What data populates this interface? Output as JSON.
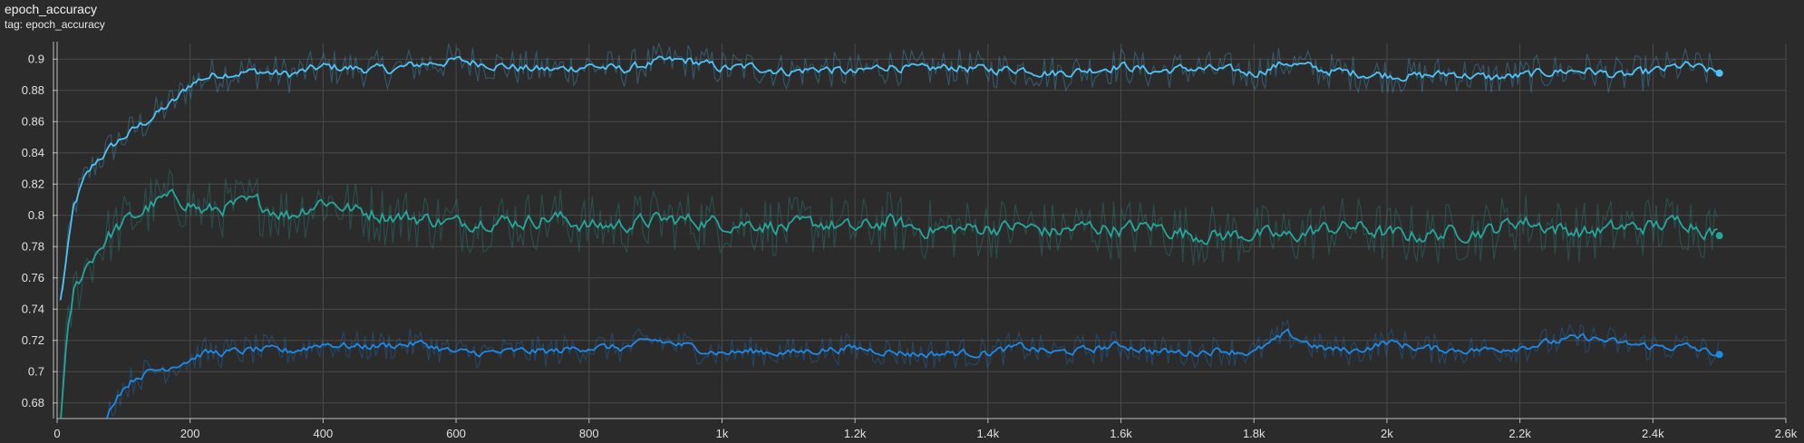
{
  "card": {
    "title": "epoch_accuracy",
    "tag_label": "tag: epoch_accuracy"
  },
  "chart_data": {
    "type": "line",
    "title": "epoch_accuracy",
    "subtitle": "tag: epoch_accuracy",
    "xlabel": "",
    "ylabel": "",
    "xlim": [
      0,
      2600
    ],
    "ylim": [
      0.67,
      0.91
    ],
    "x_ticks": [
      0,
      200,
      400,
      600,
      800,
      1000,
      1200,
      1400,
      1600,
      1800,
      2000,
      2200,
      2400,
      2600
    ],
    "x_tick_labels": [
      "0",
      "200",
      "400",
      "600",
      "800",
      "1k",
      "1.2k",
      "1.4k",
      "1.6k",
      "1.8k",
      "2k",
      "2.2k",
      "2.4k",
      "2.6k"
    ],
    "y_ticks": [
      0.68,
      0.7,
      0.72,
      0.74,
      0.76,
      0.78,
      0.8,
      0.82,
      0.84,
      0.86,
      0.88,
      0.9
    ],
    "y_tick_labels": [
      "0.68",
      "0.7",
      "0.72",
      "0.74",
      "0.76",
      "0.78",
      "0.8",
      "0.82",
      "0.84",
      "0.86",
      "0.88",
      "0.9"
    ],
    "grid": true,
    "legend": "none",
    "series": [
      {
        "color": "#4fc3f7",
        "smoothed": {
          "x": [
            5,
            15,
            25,
            40,
            60,
            80,
            100,
            120,
            140,
            160,
            180,
            200,
            220,
            250,
            300,
            350,
            400,
            450,
            500,
            550,
            600,
            650,
            700,
            750,
            800,
            850,
            900,
            950,
            1000,
            1050,
            1100,
            1150,
            1200,
            1250,
            1300,
            1350,
            1400,
            1450,
            1500,
            1550,
            1600,
            1650,
            1700,
            1750,
            1800,
            1850,
            1900,
            1950,
            2000,
            2050,
            2100,
            2150,
            2200,
            2250,
            2300,
            2350,
            2400,
            2450,
            2500
          ],
          "y": [
            0.745,
            0.775,
            0.805,
            0.822,
            0.835,
            0.843,
            0.85,
            0.856,
            0.862,
            0.868,
            0.874,
            0.884,
            0.888,
            0.891,
            0.892,
            0.89,
            0.895,
            0.894,
            0.893,
            0.897,
            0.899,
            0.897,
            0.894,
            0.893,
            0.896,
            0.893,
            0.898,
            0.899,
            0.894,
            0.895,
            0.892,
            0.894,
            0.891,
            0.896,
            0.893,
            0.895,
            0.893,
            0.894,
            0.891,
            0.893,
            0.896,
            0.892,
            0.894,
            0.893,
            0.891,
            0.898,
            0.893,
            0.891,
            0.89,
            0.889,
            0.891,
            0.888,
            0.889,
            0.892,
            0.893,
            0.889,
            0.892,
            0.896,
            0.891
          ]
        },
        "raw_noise": 0.012
      },
      {
        "color": "#26a69a",
        "smoothed": {
          "x": [
            5,
            15,
            25,
            40,
            60,
            80,
            100,
            120,
            140,
            160,
            180,
            200,
            220,
            250,
            300,
            350,
            400,
            450,
            500,
            550,
            600,
            650,
            700,
            750,
            800,
            850,
            900,
            950,
            1000,
            1050,
            1100,
            1150,
            1200,
            1250,
            1300,
            1350,
            1400,
            1450,
            1500,
            1550,
            1600,
            1650,
            1700,
            1750,
            1800,
            1850,
            1900,
            1950,
            2000,
            2050,
            2100,
            2150,
            2200,
            2250,
            2300,
            2350,
            2400,
            2450,
            2500
          ],
          "y": [
            0.67,
            0.72,
            0.75,
            0.765,
            0.778,
            0.788,
            0.795,
            0.8,
            0.806,
            0.81,
            0.811,
            0.808,
            0.802,
            0.805,
            0.808,
            0.8,
            0.81,
            0.803,
            0.8,
            0.798,
            0.795,
            0.797,
            0.796,
            0.799,
            0.793,
            0.794,
            0.797,
            0.797,
            0.795,
            0.795,
            0.792,
            0.795,
            0.791,
            0.796,
            0.791,
            0.791,
            0.792,
            0.793,
            0.789,
            0.793,
            0.791,
            0.793,
            0.788,
            0.787,
            0.788,
            0.786,
            0.791,
            0.793,
            0.788,
            0.787,
            0.789,
            0.79,
            0.797,
            0.792,
            0.789,
            0.792,
            0.793,
            0.797,
            0.787
          ]
        },
        "raw_noise": 0.02
      },
      {
        "color": "#1e88e5",
        "smoothed": {
          "x": [
            75,
            90,
            100,
            120,
            140,
            160,
            180,
            200,
            220,
            250,
            300,
            350,
            400,
            450,
            500,
            550,
            600,
            650,
            700,
            750,
            800,
            850,
            900,
            950,
            1000,
            1050,
            1100,
            1150,
            1200,
            1250,
            1300,
            1350,
            1400,
            1450,
            1500,
            1550,
            1600,
            1650,
            1700,
            1750,
            1800,
            1850,
            1900,
            1950,
            2000,
            2050,
            2100,
            2150,
            2200,
            2250,
            2300,
            2350,
            2400,
            2450,
            2500
          ],
          "y": [
            0.672,
            0.685,
            0.69,
            0.697,
            0.7,
            0.702,
            0.705,
            0.708,
            0.712,
            0.712,
            0.714,
            0.713,
            0.718,
            0.716,
            0.717,
            0.718,
            0.712,
            0.712,
            0.713,
            0.713,
            0.716,
            0.715,
            0.72,
            0.716,
            0.712,
            0.713,
            0.712,
            0.714,
            0.715,
            0.713,
            0.711,
            0.712,
            0.712,
            0.716,
            0.712,
            0.714,
            0.717,
            0.713,
            0.712,
            0.714,
            0.712,
            0.724,
            0.715,
            0.713,
            0.719,
            0.715,
            0.714,
            0.714,
            0.716,
            0.719,
            0.722,
            0.718,
            0.716,
            0.716,
            0.711
          ]
        },
        "raw_noise": 0.01
      }
    ]
  }
}
